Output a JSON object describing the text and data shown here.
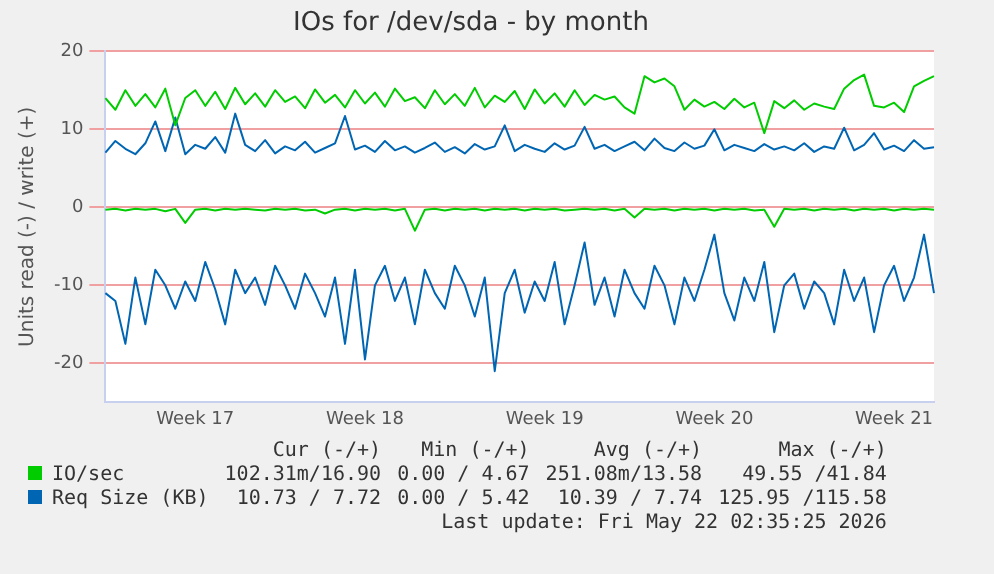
{
  "chart_data": {
    "type": "line",
    "title": "IOs for /dev/sda - by month",
    "ylabel": "Units read (-) / write (+)",
    "categories": [
      null,
      null,
      null,
      null,
      null,
      null,
      null,
      null,
      null,
      "Week 17",
      null,
      null,
      null,
      null,
      null,
      null,
      null,
      null,
      null,
      null,
      null,
      null,
      null,
      null,
      null,
      null,
      "Week 18",
      null,
      null,
      null,
      null,
      null,
      null,
      null,
      null,
      null,
      null,
      null,
      null,
      null,
      null,
      null,
      null,
      null,
      "Week 19",
      null,
      null,
      null,
      null,
      null,
      null,
      null,
      null,
      null,
      null,
      null,
      null,
      null,
      null,
      null,
      null,
      "Week 20",
      null,
      null,
      null,
      null,
      null,
      null,
      null,
      null,
      null,
      null,
      null,
      null,
      null,
      null,
      null,
      null,
      null,
      "Week 21",
      null,
      null,
      null,
      null
    ],
    "series": [
      {
        "name": "IO/sec",
        "color": "#00cc00",
        "values": [
          14,
          12.5,
          15,
          13,
          14.5,
          12.8,
          15.2,
          10.5,
          14,
          15,
          13,
          14.8,
          12.6,
          15.3,
          13.2,
          14.6,
          12.9,
          15,
          13.5,
          14.2,
          12.7,
          15.1,
          13.4,
          14.4,
          12.8,
          15,
          13.3,
          14.7,
          12.9,
          15.2,
          13.6,
          14.1,
          12.7,
          15,
          13.2,
          14.5,
          13,
          15.3,
          12.8,
          14.3,
          13.5,
          14.9,
          12.6,
          15.1,
          13.3,
          14.6,
          12.9,
          15,
          13.1,
          14.4,
          13.8,
          14.2,
          12.8,
          12,
          16.8,
          16,
          16.5,
          15.5,
          12.5,
          13.8,
          12.9,
          13.5,
          12.6,
          13.9,
          12.8,
          13.4,
          9.5,
          13.6,
          12.7,
          13.7,
          12.5,
          13.3,
          12.9,
          12.6,
          15.2,
          16.3,
          17,
          13,
          12.8,
          13.4,
          12.2,
          15.5,
          16.2,
          16.8
        ]
      },
      {
        "color": "#00cc00",
        "values": [
          -0.3,
          -0.2,
          -0.4,
          -0.2,
          -0.3,
          -0.2,
          -0.5,
          -0.2,
          -2,
          -0.3,
          -0.2,
          -0.4,
          -0.2,
          -0.3,
          -0.2,
          -0.3,
          -0.4,
          -0.2,
          -0.3,
          -0.2,
          -0.4,
          -0.3,
          -0.8,
          -0.3,
          -0.2,
          -0.4,
          -0.2,
          -0.3,
          -0.2,
          -0.4,
          -0.2,
          -3,
          -0.3,
          -0.2,
          -0.4,
          -0.2,
          -0.3,
          -0.2,
          -0.4,
          -0.2,
          -0.3,
          -0.2,
          -0.4,
          -0.2,
          -0.3,
          -0.2,
          -0.4,
          -0.3,
          -0.2,
          -0.3,
          -0.2,
          -0.4,
          -0.2,
          -1.3,
          -0.2,
          -0.3,
          -0.2,
          -0.4,
          -0.2,
          -0.3,
          -0.2,
          -0.4,
          -0.2,
          -0.3,
          -0.2,
          -0.4,
          -0.3,
          -2.5,
          -0.2,
          -0.3,
          -0.2,
          -0.4,
          -0.2,
          -0.3,
          -0.2,
          -0.4,
          -0.2,
          -0.3,
          -0.2,
          -0.4,
          -0.2,
          -0.3,
          -0.2,
          -0.3
        ]
      },
      {
        "name": "Req Size (KB)",
        "color": "#0066b3",
        "values": [
          7,
          8.5,
          7.5,
          6.8,
          8.2,
          11,
          7.2,
          11.5,
          6.8,
          8,
          7.5,
          9,
          7,
          12,
          8,
          7.2,
          8.6,
          6.9,
          7.8,
          7.3,
          8.4,
          7,
          7.6,
          8.2,
          11.7,
          7.4,
          7.9,
          7.1,
          8.5,
          7.3,
          7.8,
          7,
          7.6,
          8.3,
          7.1,
          7.7,
          6.9,
          8.1,
          7.4,
          7.8,
          10.5,
          7.2,
          8,
          7.5,
          7.1,
          8.2,
          7.4,
          7.9,
          10.3,
          7.5,
          8,
          7.2,
          7.8,
          8.4,
          7.3,
          8.8,
          7.6,
          7.2,
          8.3,
          7.5,
          7.9,
          10,
          7.3,
          8,
          7.6,
          7.2,
          8.1,
          7.4,
          7.8,
          7.3,
          8.2,
          7.1,
          7.8,
          7.5,
          10.2,
          7.3,
          8,
          9.5,
          7.4,
          7.9,
          7.2,
          8.6,
          7.5,
          7.7
        ]
      },
      {
        "color": "#0066b3",
        "values": [
          -11,
          -12,
          -17.5,
          -9,
          -15,
          -8,
          -10,
          -13,
          -9.5,
          -12,
          -7,
          -10.5,
          -15,
          -8,
          -11,
          -9,
          -12.5,
          -7.5,
          -10,
          -13,
          -8.5,
          -11,
          -14,
          -9,
          -17.5,
          -8,
          -19.5,
          -10,
          -7.5,
          -12,
          -9,
          -15,
          -8,
          -11,
          -13,
          -7.5,
          -10,
          -14,
          -9,
          -21,
          -11,
          -8,
          -13.5,
          -9.5,
          -12,
          -7,
          -15,
          -10,
          -4.5,
          -12.5,
          -9,
          -14,
          -8,
          -11,
          -13,
          -7.5,
          -10,
          -15,
          -9,
          -12,
          -8,
          -3.5,
          -11,
          -14.5,
          -9,
          -12,
          -7,
          -16,
          -10,
          -8.5,
          -13,
          -9.5,
          -11,
          -15,
          -8,
          -12,
          -9,
          -16,
          -10,
          -7.5,
          -12,
          -9,
          -3.5,
          -11
        ]
      }
    ],
    "ylim": [
      -25,
      20
    ],
    "yticks": [
      -20,
      -10,
      0,
      10,
      20
    ],
    "grid": "y",
    "legend": "bottom",
    "annotations": [
      "Cur (-/+)",
      "Min (-/+)",
      "Avg (-/+)",
      "Max (-/+)",
      "102.31m/16.90",
      "0.00 / 4.67",
      "251.08m/13.58",
      "49.55 /41.84",
      "10.73 / 7.72",
      "0.00 / 5.42",
      "10.39 / 7.74",
      "125.95 /115.58",
      "Last update: Fri May 22 02:35:25 2026"
    ]
  }
}
